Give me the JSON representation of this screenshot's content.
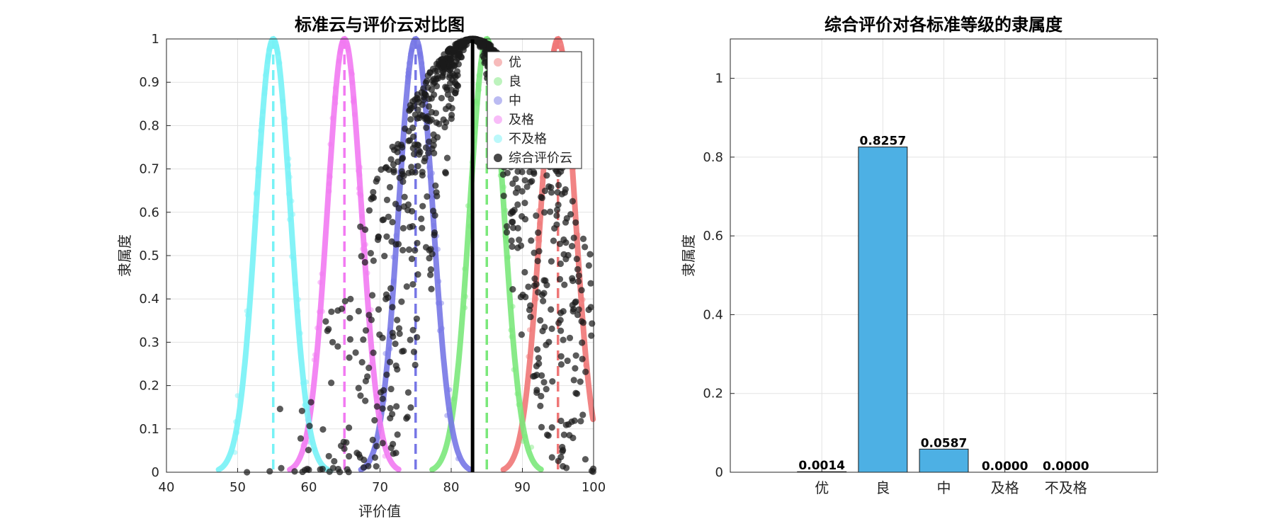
{
  "chart_data": [
    {
      "type": "scatter",
      "title": "标准云与评价云对比图",
      "xlabel": "评价值",
      "ylabel": "隶属度",
      "xlim": [
        40,
        100
      ],
      "ylim": [
        0,
        1
      ],
      "xticks": [
        "40",
        "50",
        "60",
        "70",
        "80",
        "90",
        "100"
      ],
      "yticks": [
        "0",
        "0.1",
        "0.2",
        "0.3",
        "0.4",
        "0.5",
        "0.6",
        "0.7",
        "0.8",
        "0.9",
        "1"
      ],
      "grid": true,
      "legend_position": "top-right",
      "standard_clouds": [
        {
          "name": "优",
          "Ex": 95,
          "En": 2.4,
          "color": "#ef7777"
        },
        {
          "name": "良",
          "Ex": 85,
          "En": 2.4,
          "color": "#7be87b"
        },
        {
          "name": "中",
          "Ex": 75,
          "En": 2.4,
          "color": "#7777e6"
        },
        {
          "name": "及格",
          "Ex": 65,
          "En": 2.4,
          "color": "#f27af2"
        },
        {
          "name": "不及格",
          "Ex": 55,
          "En": 2.4,
          "color": "#77f2f6"
        }
      ],
      "evaluation_cloud": {
        "name": "综合评价云",
        "Ex": 83,
        "En": 9.5,
        "color": "#1a1a1a"
      },
      "legend": [
        "优",
        "良",
        "中",
        "及格",
        "不及格",
        "综合评价云"
      ]
    },
    {
      "type": "bar",
      "title": "综合评价对各标准等级的隶属度",
      "xlabel": "",
      "ylabel": "隶属度",
      "categories": [
        "优",
        "良",
        "中",
        "及格",
        "不及格"
      ],
      "values": [
        0.0014,
        0.8257,
        0.0587,
        0.0,
        0.0
      ],
      "value_labels": [
        "0.0014",
        "0.8257",
        "0.0587",
        "0.0000",
        "0.0000"
      ],
      "ylim": [
        0,
        1.1
      ],
      "yticks": [
        "0",
        "0.2",
        "0.4",
        "0.6",
        "0.8",
        "1"
      ],
      "grid": true,
      "bar_color": "#4db0e4"
    }
  ]
}
